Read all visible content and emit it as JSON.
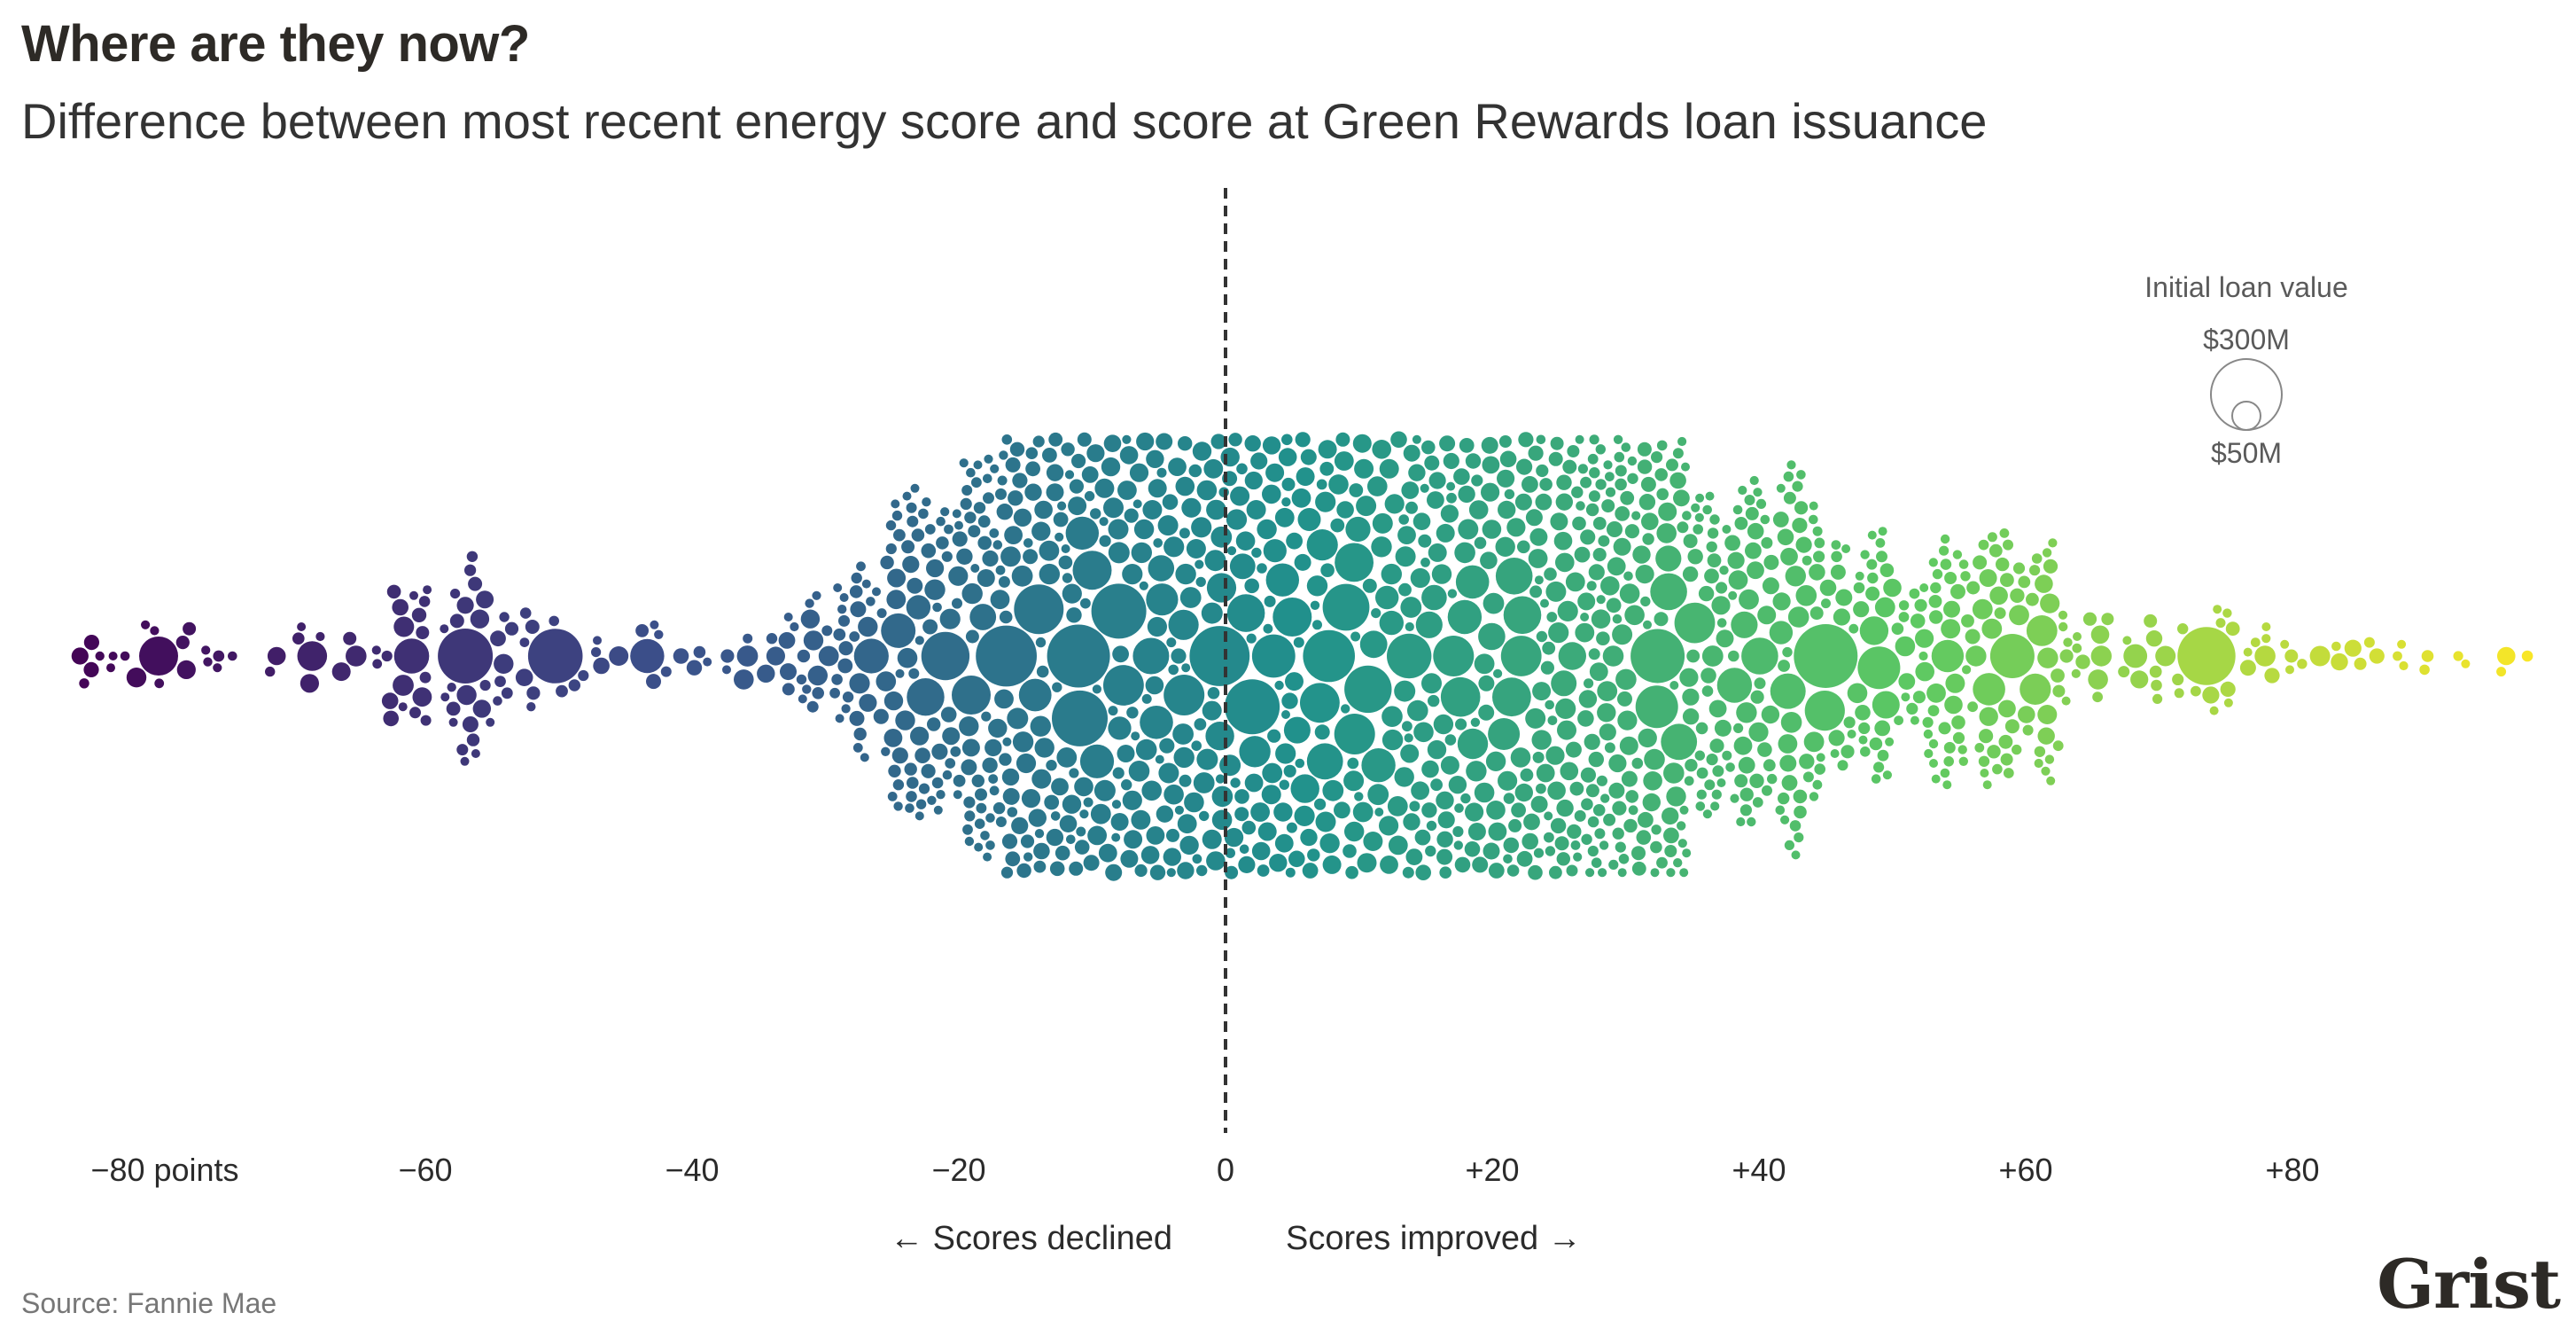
{
  "title": "Where are they now?",
  "subtitle": "Difference between most recent energy score and score at Green Rewards loan issuance",
  "source": "Source: Fannie Mae",
  "logo_text": "Grist",
  "colors": {
    "low": "#440154",
    "mid": "#21918c",
    "high": "#fde725",
    "zero_line": "#333333"
  },
  "chart_data": {
    "type": "scatter",
    "subtype": "beeswarm",
    "x_axis": {
      "range": [
        -90,
        100
      ],
      "ticks": [
        -80,
        -60,
        -40,
        -20,
        0,
        20,
        40,
        60,
        80
      ],
      "tick_labels": [
        "−80 points",
        "−60",
        "−40",
        "−20",
        "0",
        "+20",
        "+40",
        "+60",
        "+80"
      ]
    },
    "annotations": {
      "left": "← Scores declined",
      "right": "Scores improved →"
    },
    "size_legend": {
      "title": "Initial loan value",
      "large_label": "$300M",
      "small_label": "$50M",
      "large_value_millions": 300,
      "small_value_millions": 50
    },
    "distribution": {
      "value": "difference in energy score (points)",
      "size": "initial loan value",
      "color_scale": "viridis by score difference",
      "approx_point_count": 2400,
      "density_points": [
        {
          "x": -87,
          "n": 2
        },
        {
          "x": -80,
          "n": 8
        },
        {
          "x": -70,
          "n": 6
        },
        {
          "x": -60,
          "n": 22
        },
        {
          "x": -55,
          "n": 28
        },
        {
          "x": -50,
          "n": 10
        },
        {
          "x": -45,
          "n": 8
        },
        {
          "x": -40,
          "n": 14
        },
        {
          "x": -35,
          "n": 14
        },
        {
          "x": -30,
          "n": 30
        },
        {
          "x": -25,
          "n": 55
        },
        {
          "x": -20,
          "n": 85
        },
        {
          "x": -15,
          "n": 120
        },
        {
          "x": -10,
          "n": 170
        },
        {
          "x": -5,
          "n": 210
        },
        {
          "x": 0,
          "n": 230
        },
        {
          "x": 5,
          "n": 220
        },
        {
          "x": 10,
          "n": 200
        },
        {
          "x": 15,
          "n": 175
        },
        {
          "x": 20,
          "n": 150
        },
        {
          "x": 25,
          "n": 130
        },
        {
          "x": 30,
          "n": 105
        },
        {
          "x": 35,
          "n": 85
        },
        {
          "x": 40,
          "n": 65
        },
        {
          "x": 45,
          "n": 55
        },
        {
          "x": 50,
          "n": 45
        },
        {
          "x": 55,
          "n": 35
        },
        {
          "x": 60,
          "n": 30
        },
        {
          "x": 65,
          "n": 18
        },
        {
          "x": 70,
          "n": 20
        },
        {
          "x": 75,
          "n": 16
        },
        {
          "x": 80,
          "n": 10
        },
        {
          "x": 85,
          "n": 6
        },
        {
          "x": 90,
          "n": 8
        },
        {
          "x": 95,
          "n": 3
        },
        {
          "x": 99,
          "n": 2
        }
      ]
    }
  }
}
